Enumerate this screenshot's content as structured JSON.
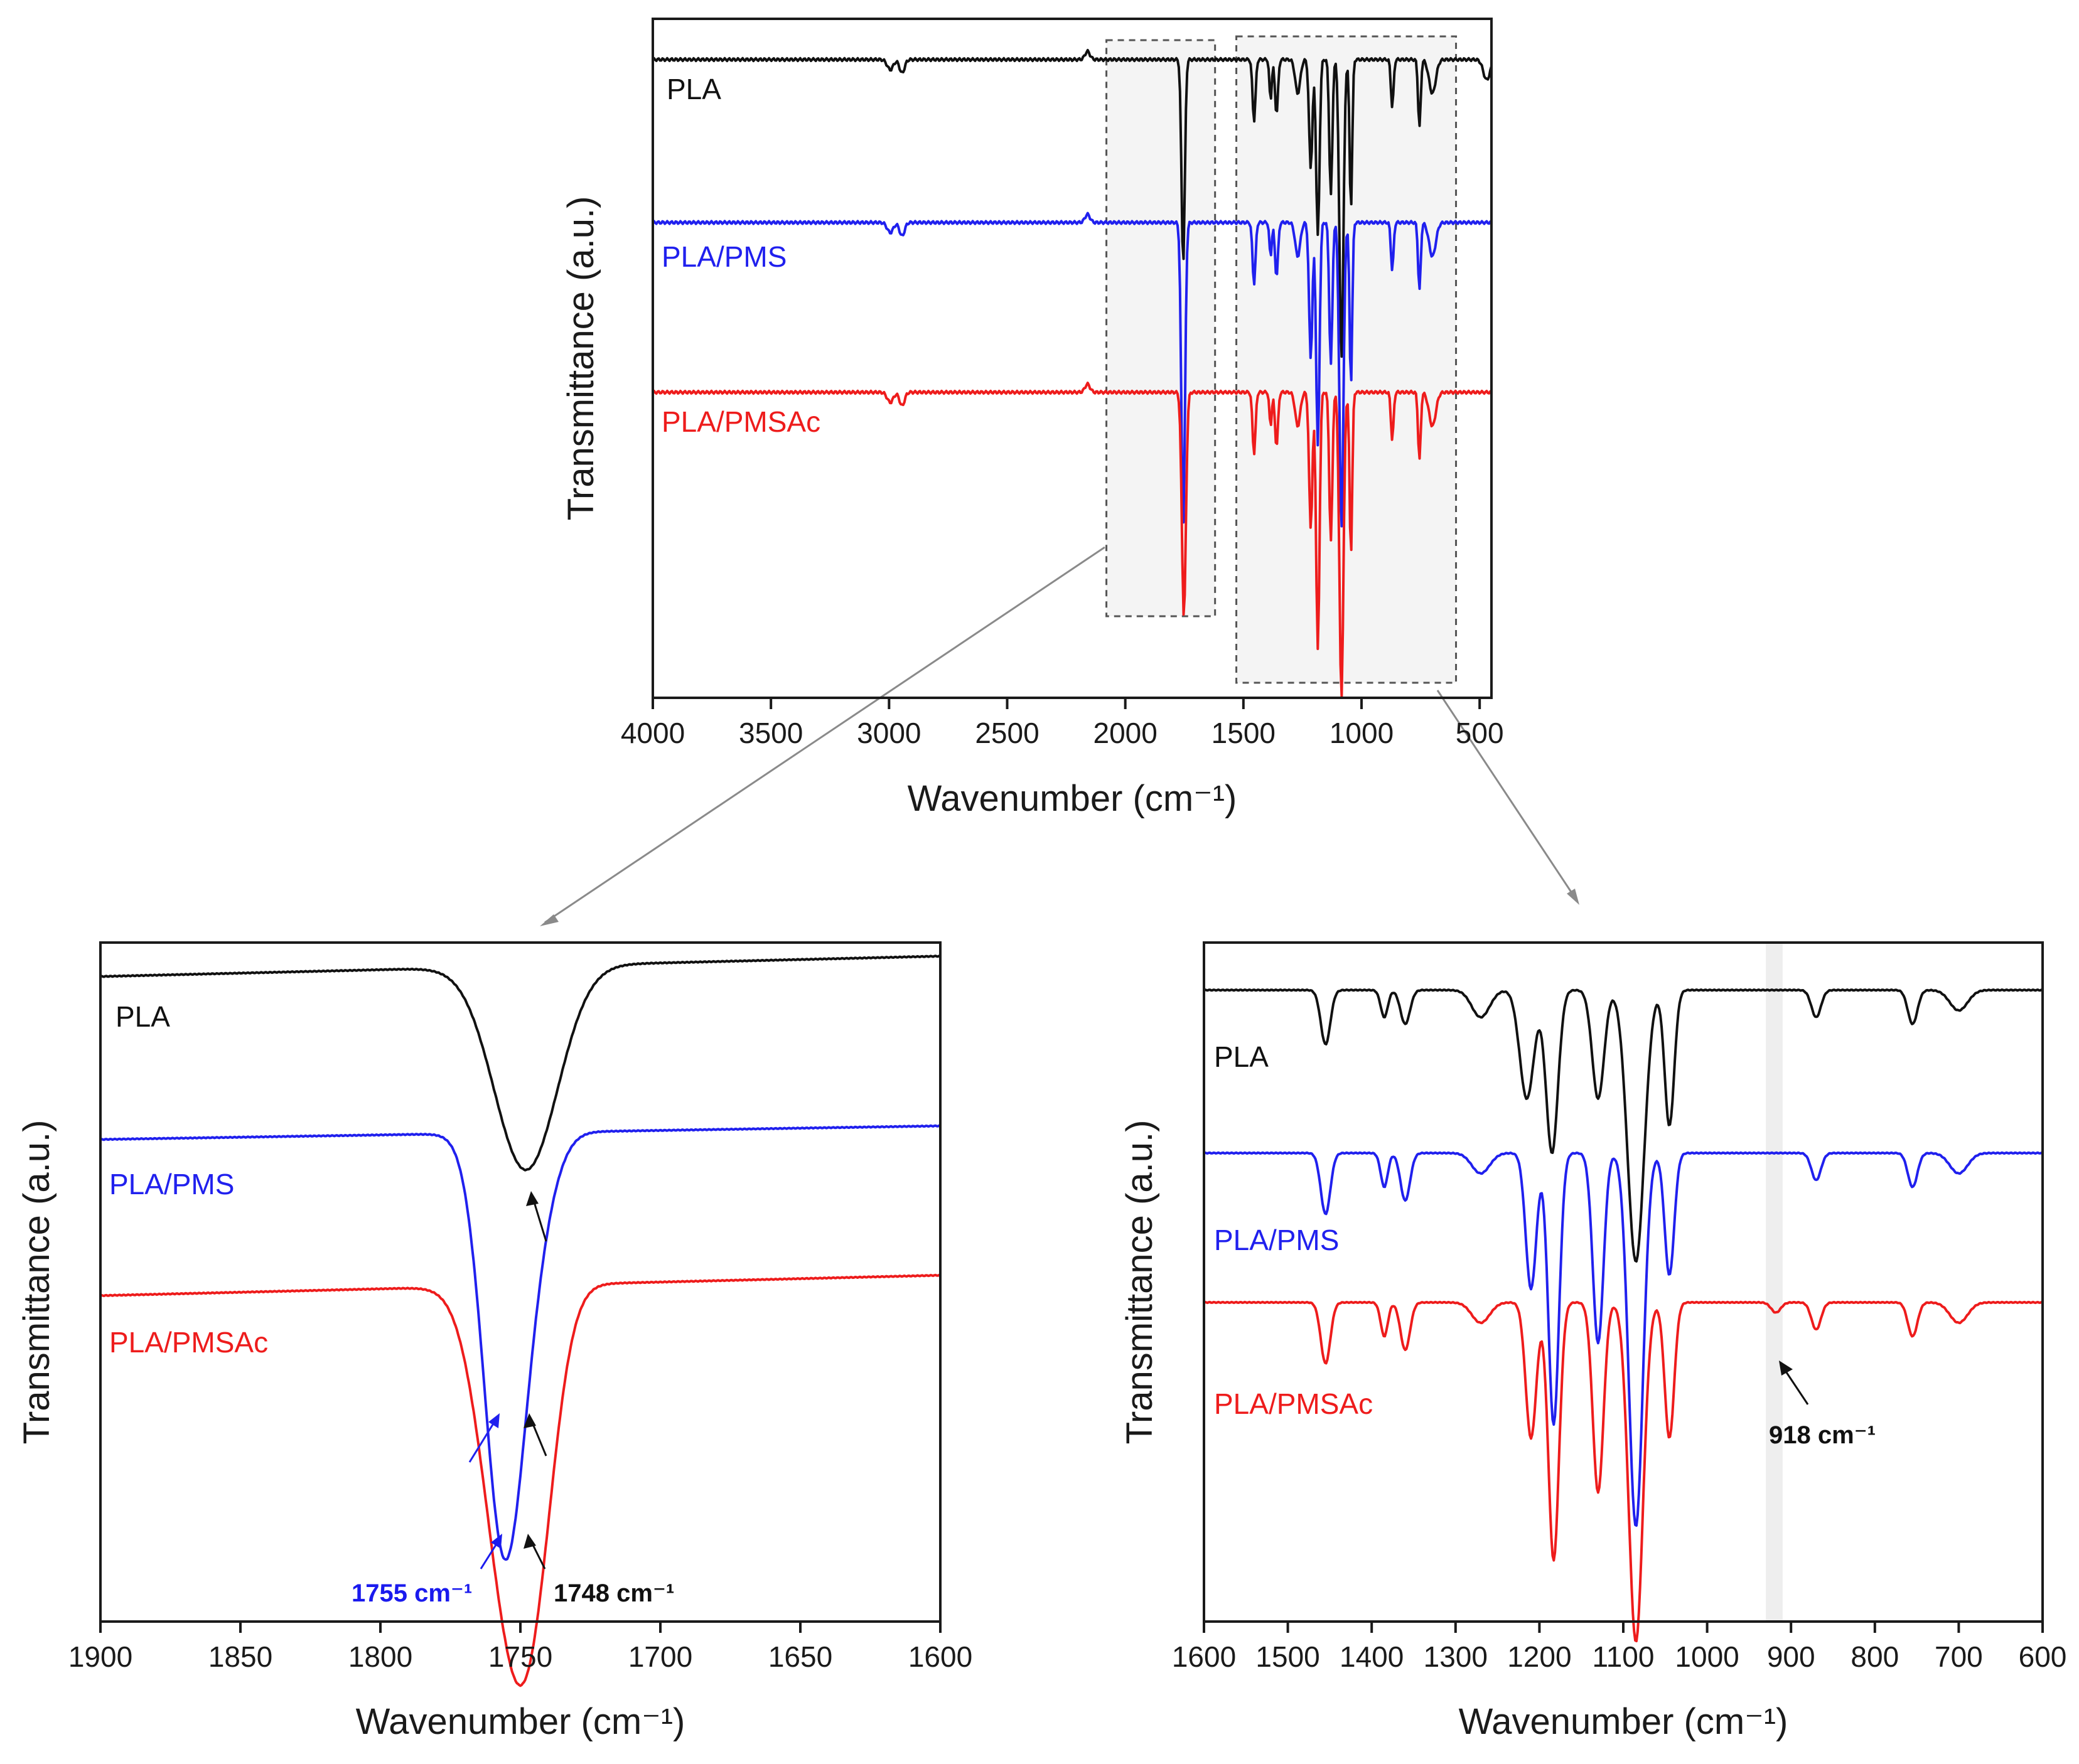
{
  "colors": {
    "PLA": "#111111",
    "PLA/PMS": "#2020ee",
    "PLA/PMSAc": "#ee1c1c",
    "annotation_blue": "#1a1aee",
    "annotation_black": "#111111"
  },
  "chart_data": [
    {
      "id": "full",
      "type": "line",
      "title": "",
      "xlabel": "Wavenumber (cm⁻¹)",
      "ylabel": "Transmittance (a.u.)",
      "xlim": [
        4000,
        450
      ],
      "xticks": [
        4000,
        3500,
        3000,
        2500,
        2000,
        1500,
        1000,
        500
      ],
      "ylim": [
        0,
        1
      ],
      "series_labels": [
        "PLA",
        "PLA/PMS",
        "PLA/PMSAc"
      ],
      "highlight_ranges": [
        [
          2080,
          1620
        ],
        [
          1530,
          600
        ]
      ],
      "series": [
        {
          "name": "PLA",
          "baseline": 0.94,
          "features": [
            [
              2995,
              0.015,
              18
            ],
            [
              2945,
              0.02,
              15
            ],
            [
              2160,
              -0.012,
              15
            ],
            [
              1755,
              0.3,
              10
            ],
            [
              1455,
              0.09,
              9
            ],
            [
              1385,
              0.06,
              7
            ],
            [
              1360,
              0.08,
              9
            ],
            [
              1270,
              0.05,
              15
            ],
            [
              1215,
              0.16,
              10
            ],
            [
              1185,
              0.26,
              10
            ],
            [
              1130,
              0.2,
              9
            ],
            [
              1085,
              0.44,
              12
            ],
            [
              1045,
              0.22,
              8
            ],
            [
              870,
              0.07,
              8
            ],
            [
              755,
              0.1,
              8
            ],
            [
              700,
              0.05,
              20
            ],
            [
              470,
              0.03,
              20
            ]
          ]
        },
        {
          "name": "PLA/PMS",
          "baseline": 0.7,
          "features": [
            [
              2995,
              0.015,
              18
            ],
            [
              2945,
              0.02,
              15
            ],
            [
              2160,
              -0.012,
              15
            ],
            [
              1755,
              0.45,
              11
            ],
            [
              1455,
              0.09,
              9
            ],
            [
              1385,
              0.05,
              7
            ],
            [
              1360,
              0.08,
              9
            ],
            [
              1270,
              0.05,
              15
            ],
            [
              1215,
              0.2,
              10
            ],
            [
              1185,
              0.33,
              10
            ],
            [
              1130,
              0.21,
              9
            ],
            [
              1085,
              0.45,
              12
            ],
            [
              1045,
              0.24,
              8
            ],
            [
              870,
              0.07,
              8
            ],
            [
              755,
              0.1,
              8
            ],
            [
              700,
              0.05,
              20
            ]
          ]
        },
        {
          "name": "PLA/PMSAc",
          "baseline": 0.45,
          "features": [
            [
              2995,
              0.015,
              18
            ],
            [
              2945,
              0.02,
              15
            ],
            [
              2160,
              -0.012,
              15
            ],
            [
              1752,
              0.33,
              12
            ],
            [
              1455,
              0.09,
              9
            ],
            [
              1385,
              0.05,
              7
            ],
            [
              1360,
              0.08,
              9
            ],
            [
              1270,
              0.05,
              15
            ],
            [
              1215,
              0.2,
              10
            ],
            [
              1185,
              0.38,
              10
            ],
            [
              1130,
              0.22,
              9
            ],
            [
              1085,
              0.45,
              12
            ],
            [
              1045,
              0.24,
              8
            ],
            [
              870,
              0.07,
              8
            ],
            [
              755,
              0.1,
              8
            ],
            [
              700,
              0.05,
              20
            ]
          ]
        }
      ]
    },
    {
      "id": "carbonyl",
      "type": "line",
      "title": "",
      "xlabel": "Wavenumber (cm⁻¹)",
      "ylabel": "Transmittance (a.u.)",
      "xlim": [
        1900,
        1600
      ],
      "xticks": [
        1900,
        1850,
        1800,
        1750,
        1700,
        1650,
        1600
      ],
      "ylim": [
        0,
        1
      ],
      "series_labels": [
        "PLA",
        "PLA/PMS",
        "PLA/PMSAc"
      ],
      "annotations": [
        {
          "text": "1755 cm⁻¹",
          "x": 1755,
          "color": "annotation_blue"
        },
        {
          "text": "1748 cm⁻¹",
          "x": 1748,
          "color": "annotation_black"
        }
      ],
      "series": [
        {
          "name": "PLA",
          "baseline": 0.95,
          "slope": 0.03,
          "features": [
            [
              1748,
              0.3,
              16
            ]
          ]
        },
        {
          "name": "PLA/PMS",
          "baseline": 0.71,
          "slope": 0.02,
          "features": [
            [
              1756,
              0.59,
              10
            ],
            [
              1745,
              0.12,
              10
            ]
          ]
        },
        {
          "name": "PLA/PMSAc",
          "baseline": 0.48,
          "slope": 0.03,
          "features": [
            [
              1755,
              0.4,
              13
            ],
            [
              1745,
              0.3,
              11
            ]
          ]
        }
      ]
    },
    {
      "id": "fingerprint",
      "type": "line",
      "title": "",
      "xlabel": "Wavenumber (cm⁻¹)",
      "ylabel": "Transmittance (a.u.)",
      "xlim": [
        1600,
        600
      ],
      "xticks": [
        1600,
        1500,
        1400,
        1300,
        1200,
        1100,
        1000,
        900,
        800,
        700,
        600
      ],
      "ylim": [
        0,
        1
      ],
      "series_labels": [
        "PLA",
        "PLA/PMS",
        "PLA/PMSAc"
      ],
      "highlight_range": [
        930,
        910
      ],
      "annotations": [
        {
          "text": "918 cm⁻¹",
          "x": 918,
          "color": "annotation_black"
        }
      ],
      "series": [
        {
          "name": "PLA",
          "baseline": 0.93,
          "features": [
            [
              1455,
              0.08,
              8
            ],
            [
              1385,
              0.04,
              6
            ],
            [
              1360,
              0.05,
              8
            ],
            [
              1270,
              0.04,
              15
            ],
            [
              1215,
              0.16,
              12
            ],
            [
              1185,
              0.24,
              10
            ],
            [
              1130,
              0.16,
              10
            ],
            [
              1085,
              0.4,
              14
            ],
            [
              1045,
              0.2,
              8
            ],
            [
              870,
              0.04,
              8
            ],
            [
              755,
              0.05,
              8
            ],
            [
              700,
              0.03,
              15
            ]
          ]
        },
        {
          "name": "PLA/PMS",
          "baseline": 0.69,
          "features": [
            [
              1455,
              0.09,
              8
            ],
            [
              1385,
              0.05,
              6
            ],
            [
              1360,
              0.07,
              8
            ],
            [
              1270,
              0.03,
              15
            ],
            [
              1210,
              0.2,
              9
            ],
            [
              1183,
              0.4,
              9
            ],
            [
              1130,
              0.28,
              9
            ],
            [
              1085,
              0.55,
              12
            ],
            [
              1045,
              0.18,
              8
            ],
            [
              870,
              0.04,
              8
            ],
            [
              755,
              0.05,
              8
            ],
            [
              700,
              0.03,
              15
            ]
          ]
        },
        {
          "name": "PLA/PMSAc",
          "baseline": 0.47,
          "features": [
            [
              1455,
              0.09,
              8
            ],
            [
              1385,
              0.05,
              6
            ],
            [
              1360,
              0.07,
              8
            ],
            [
              1270,
              0.03,
              15
            ],
            [
              1210,
              0.2,
              9
            ],
            [
              1183,
              0.38,
              9
            ],
            [
              1130,
              0.28,
              9
            ],
            [
              1085,
              0.5,
              12
            ],
            [
              1045,
              0.2,
              8
            ],
            [
              918,
              0.015,
              8
            ],
            [
              870,
              0.04,
              8
            ],
            [
              755,
              0.05,
              8
            ],
            [
              700,
              0.03,
              15
            ]
          ]
        }
      ]
    }
  ]
}
